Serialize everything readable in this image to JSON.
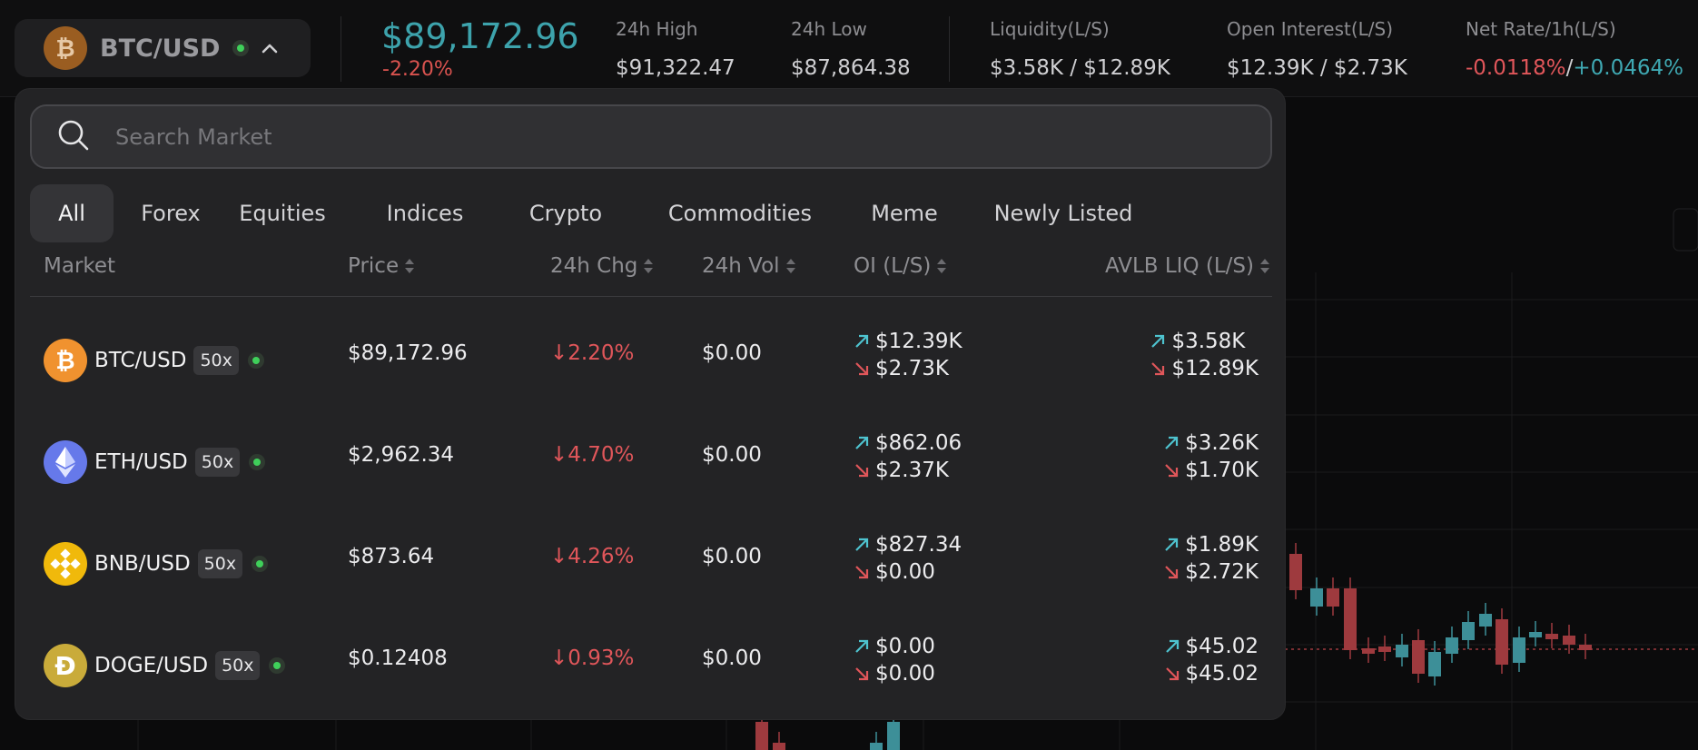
{
  "header": {
    "pair": "BTC/USD",
    "price": "$89,172.96",
    "change": "-2.20%",
    "stats": [
      {
        "label": "24h High",
        "value": "$91,322.47"
      },
      {
        "label": "24h Low",
        "value": "$87,864.38"
      },
      {
        "label": "Liquidity(L/S)",
        "value": "$3.58K / $12.89K"
      },
      {
        "label": "Open Interest(L/S)",
        "value": "$12.39K / $2.73K"
      }
    ],
    "net_rate": {
      "label": "Net Rate/1h(L/S)",
      "long": "-0.0118%",
      "sep": "/",
      "short": "+0.0464%"
    }
  },
  "search": {
    "placeholder": "Search Market"
  },
  "tabs": [
    "All",
    "Forex",
    "Equities",
    "Indices",
    "Crypto",
    "Commodities",
    "Meme",
    "Newly Listed"
  ],
  "columns": [
    "Market",
    "Price",
    "24h Chg",
    "24h Vol",
    "OI (L/S)",
    "AVLB LIQ (L/S)"
  ],
  "rows": [
    {
      "symbol": "BTC/USD",
      "icon": "bitcoin-icon",
      "leverage": "50x",
      "price": "$89,172.96",
      "change": "2.20%",
      "volume": "$0.00",
      "oi_long": "$12.39K",
      "oi_short": "$2.73K",
      "liq_long": "$3.58K",
      "liq_short": "$12.89K"
    },
    {
      "symbol": "ETH/USD",
      "icon": "ethereum-icon",
      "leverage": "50x",
      "price": "$2,962.34",
      "change": "4.70%",
      "volume": "$0.00",
      "oi_long": "$862.06",
      "oi_short": "$2.37K",
      "liq_long": "$3.26K",
      "liq_short": "$1.70K"
    },
    {
      "symbol": "BNB/USD",
      "icon": "bnb-icon",
      "leverage": "50x",
      "price": "$873.64",
      "change": "4.26%",
      "volume": "$0.00",
      "oi_long": "$827.34",
      "oi_short": "$0.00",
      "liq_long": "$1.89K",
      "liq_short": "$2.72K"
    },
    {
      "symbol": "DOGE/USD",
      "icon": "dogecoin-icon",
      "leverage": "50x",
      "price": "$0.12408",
      "change": "0.93%",
      "volume": "$0.00",
      "oi_long": "$0.00",
      "oi_short": "$0.00",
      "liq_long": "$45.02",
      "liq_short": "$45.02"
    }
  ],
  "colors": {
    "accent_teal": "#3da3ac",
    "negative_red": "#e0565a",
    "online_green": "#3fd05a"
  }
}
